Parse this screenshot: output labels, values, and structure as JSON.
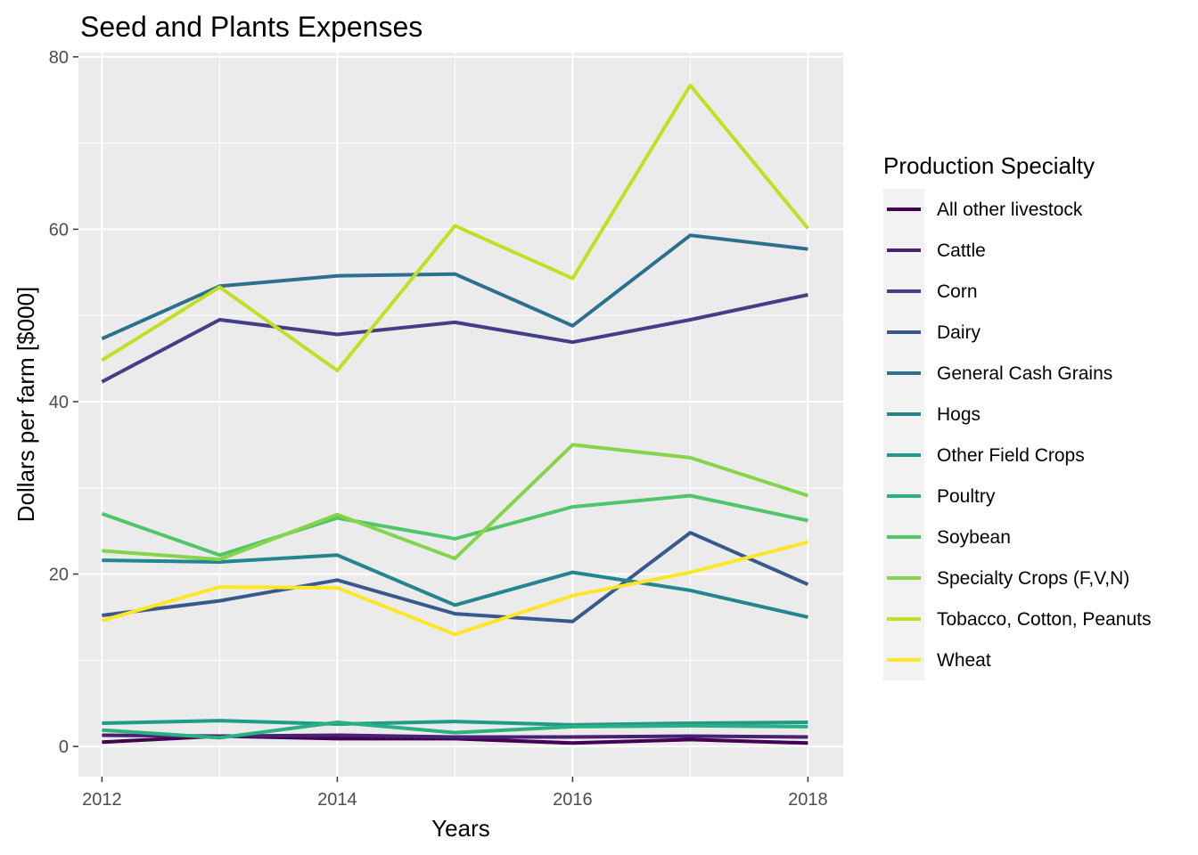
{
  "chart_data": {
    "type": "line",
    "title": "Seed and Plants Expenses",
    "xlabel": "Years",
    "ylabel": "Dollars per farm [$000]",
    "xlim": [
      2011.8,
      2018.3
    ],
    "ylim": [
      -3.5,
      80.5
    ],
    "x_ticks": [
      2012,
      2014,
      2016,
      2018
    ],
    "y_ticks": [
      0,
      20,
      40,
      60,
      80
    ],
    "grid": true,
    "legend": {
      "title": "Production Specialty",
      "position": "right"
    },
    "x": [
      2012,
      2013,
      2014,
      2015,
      2016,
      2017,
      2018
    ],
    "series": [
      {
        "name": "All other livestock",
        "color": "#440154",
        "values": [
          0.5,
          1.2,
          0.9,
          0.9,
          0.4,
          0.8,
          0.4
        ]
      },
      {
        "name": "Cattle",
        "color": "#482173",
        "values": [
          1.3,
          1.2,
          1.3,
          1.1,
          1.1,
          1.2,
          1.1
        ]
      },
      {
        "name": "Corn",
        "color": "#433E85",
        "values": [
          42.3,
          49.5,
          47.8,
          49.2,
          46.9,
          49.5,
          52.4
        ]
      },
      {
        "name": "Dairy",
        "color": "#38598C",
        "values": [
          15.2,
          16.9,
          19.3,
          15.4,
          14.5,
          24.8,
          18.8
        ]
      },
      {
        "name": "General Cash Grains",
        "color": "#2D708E",
        "values": [
          47.3,
          53.4,
          54.6,
          54.8,
          48.8,
          59.3,
          57.7
        ]
      },
      {
        "name": "Hogs",
        "color": "#25858E",
        "values": [
          21.6,
          21.4,
          22.2,
          16.4,
          20.2,
          18.1,
          15.0
        ]
      },
      {
        "name": "Other Field Crops",
        "color": "#1E9B8A",
        "values": [
          2.7,
          3.0,
          2.6,
          2.9,
          2.5,
          2.7,
          2.8
        ]
      },
      {
        "name": "Poultry",
        "color": "#2BB07F",
        "values": [
          1.9,
          1.0,
          2.8,
          1.6,
          2.3,
          2.4,
          2.3
        ]
      },
      {
        "name": "Soybean",
        "color": "#51C56A",
        "values": [
          27.0,
          22.2,
          26.5,
          24.1,
          27.8,
          29.1,
          26.2
        ]
      },
      {
        "name": "Specialty Crops (F,V,N)",
        "color": "#85D54A",
        "values": [
          22.7,
          21.7,
          26.9,
          21.8,
          35.0,
          33.5,
          29.1
        ]
      },
      {
        "name": "Tobacco, Cotton, Peanuts",
        "color": "#C2DF23",
        "values": [
          44.8,
          53.3,
          43.6,
          60.4,
          54.3,
          76.7,
          60.1
        ]
      },
      {
        "name": "Wheat",
        "color": "#FDE725",
        "values": [
          14.6,
          18.5,
          18.4,
          13.0,
          17.5,
          20.2,
          23.7
        ]
      }
    ]
  }
}
